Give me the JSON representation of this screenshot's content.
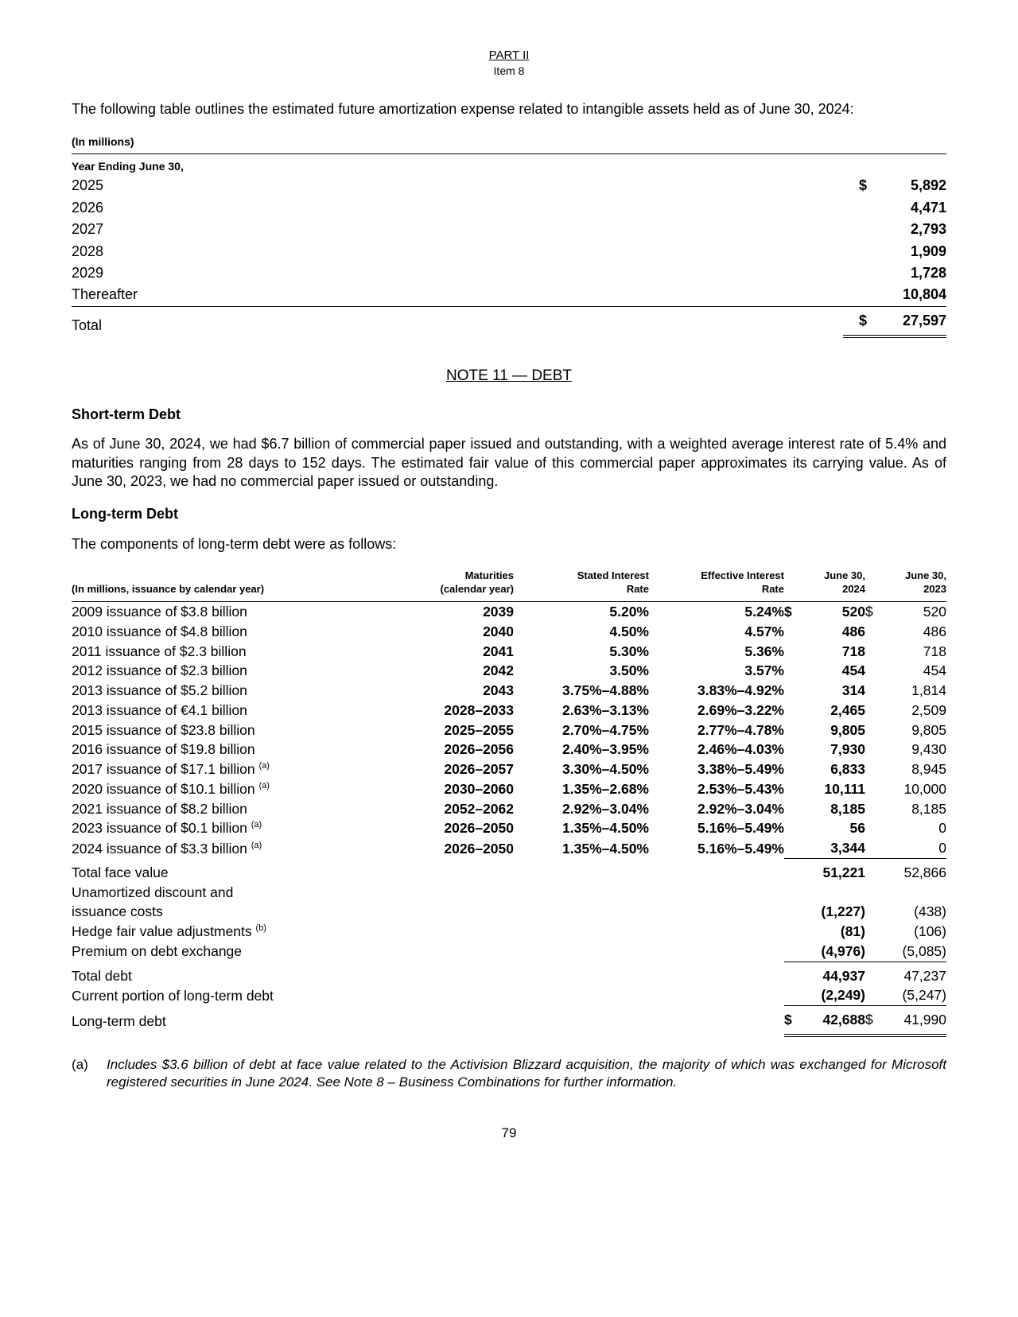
{
  "header": {
    "part": "PART II",
    "item": "Item 8"
  },
  "intro": "The following table outlines the estimated future amortization expense related to intangible assets held as of June 30, 2024:",
  "amortization": {
    "units": "(In millions)",
    "year_header": "Year Ending June 30,",
    "rows": [
      {
        "year": "2025",
        "amount": "5,892"
      },
      {
        "year": "2026",
        "amount": "4,471"
      },
      {
        "year": "2027",
        "amount": "2,793"
      },
      {
        "year": "2028",
        "amount": "1,909"
      },
      {
        "year": "2029",
        "amount": "1,728"
      },
      {
        "year": "Thereafter",
        "amount": "10,804"
      }
    ],
    "total_label": "Total",
    "total_amount": "27,597"
  },
  "note_title": "NOTE 11 — DEBT",
  "short_term": {
    "heading": "Short-term Debt",
    "body": "As of June 30, 2024, we had $6.7 billion of commercial paper issued and outstanding, with a weighted average interest rate of 5.4% and maturities ranging from 28 days to 152 days. The estimated fair value of this commercial paper approximates its carrying value. As of June 30, 2023, we had no commercial paper issued or outstanding."
  },
  "long_term": {
    "heading": "Long-term Debt",
    "intro": "The components of long-term debt were as follows:",
    "columns": {
      "issuance": "(In millions, issuance by calendar year)",
      "maturities_l1": "Maturities",
      "maturities_l2": "(calendar year)",
      "stated_l1": "Stated Interest",
      "stated_l2": "Rate",
      "effective_l1": "Effective Interest",
      "effective_l2": "Rate",
      "j2024_l1": "June 30,",
      "j2024_l2": "2024",
      "j2023_l1": "June 30,",
      "j2023_l2": "2023"
    },
    "rows": [
      {
        "iss": "2009 issuance of $3.8 billion",
        "mat": "2039",
        "stated": "5.20%",
        "eff": "5.24%",
        "d1": "$",
        "v24": "520",
        "d2": "$",
        "v23": "520"
      },
      {
        "iss": "2010 issuance of $4.8 billion",
        "mat": "2040",
        "stated": "4.50%",
        "eff": "4.57%",
        "d1": "",
        "v24": "486",
        "d2": "",
        "v23": "486"
      },
      {
        "iss": "2011 issuance of $2.3 billion",
        "mat": "2041",
        "stated": "5.30%",
        "eff": "5.36%",
        "d1": "",
        "v24": "718",
        "d2": "",
        "v23": "718"
      },
      {
        "iss": "2012 issuance of $2.3 billion",
        "mat": "2042",
        "stated": "3.50%",
        "eff": "3.57%",
        "d1": "",
        "v24": "454",
        "d2": "",
        "v23": "454"
      },
      {
        "iss": "2013 issuance of $5.2 billion",
        "mat": "2043",
        "stated": "3.75%–4.88%",
        "eff": "3.83%–4.92%",
        "d1": "",
        "v24": "314",
        "d2": "",
        "v23": "1,814"
      },
      {
        "iss": "2013 issuance of €4.1 billion",
        "mat": "2028–2033",
        "stated": "2.63%–3.13%",
        "eff": "2.69%–3.22%",
        "d1": "",
        "v24": "2,465",
        "d2": "",
        "v23": "2,509"
      },
      {
        "iss": "2015 issuance of $23.8 billion",
        "mat": "2025–2055",
        "stated": "2.70%–4.75%",
        "eff": "2.77%–4.78%",
        "d1": "",
        "v24": "9,805",
        "d2": "",
        "v23": "9,805"
      },
      {
        "iss": "2016 issuance of $19.8 billion",
        "mat": "2026–2056",
        "stated": "2.40%–3.95%",
        "eff": "2.46%–4.03%",
        "d1": "",
        "v24": "7,930",
        "d2": "",
        "v23": "9,430"
      },
      {
        "iss": "2017 issuance of $17.1 billion",
        "note": "(a)",
        "mat": "2026–2057",
        "stated": "3.30%–4.50%",
        "eff": "3.38%–5.49%",
        "d1": "",
        "v24": "6,833",
        "d2": "",
        "v23": "8,945"
      },
      {
        "iss": "2020 issuance of $10.1 billion",
        "note": "(a)",
        "mat": "2030–2060",
        "stated": "1.35%–2.68%",
        "eff": "2.53%–5.43%",
        "d1": "",
        "v24": "10,111",
        "d2": "",
        "v23": "10,000"
      },
      {
        "iss": "2021 issuance of $8.2 billion",
        "mat": "2052–2062",
        "stated": "2.92%–3.04%",
        "eff": "2.92%–3.04%",
        "d1": "",
        "v24": "8,185",
        "d2": "",
        "v23": "8,185"
      },
      {
        "iss": "2023 issuance of $0.1 billion",
        "note": "(a)",
        "mat": "2026–2050",
        "stated": "1.35%–4.50%",
        "eff": "5.16%–5.49%",
        "d1": "",
        "v24": "56",
        "d2": "",
        "v23": "0"
      },
      {
        "iss": "2024 issuance of $3.3 billion",
        "note": "(a)",
        "mat": "2026–2050",
        "stated": "1.35%–4.50%",
        "eff": "5.16%–5.49%",
        "d1": "",
        "v24": "3,344",
        "d2": "",
        "v23": "0"
      }
    ],
    "subtotals": {
      "face_label": "Total face value",
      "face_24": "51,221",
      "face_23": "52,866",
      "unamort_l1": "Unamortized discount and",
      "unamort_l2": "issuance costs",
      "unamort_24": "(1,227)",
      "unamort_23": "(438)",
      "hedge_label": "Hedge fair value adjustments",
      "hedge_note": "(b)",
      "hedge_24": "(81)",
      "hedge_23": "(106)",
      "premium_label": "Premium on debt exchange",
      "premium_24": "(4,976)",
      "premium_23": "(5,085)",
      "total_debt_label": "Total debt",
      "total_debt_24": "44,937",
      "total_debt_23": "47,237",
      "current_label": "Current portion of long-term debt",
      "current_24": "(2,249)",
      "current_23": "(5,247)",
      "lt_label": "Long-term debt",
      "lt_24": "42,688",
      "lt_23": "41,990"
    }
  },
  "footnote_a": {
    "key": "(a)",
    "text": "Includes $3.6 billion of debt at face value related to the Activision Blizzard acquisition, the majority of which was exchanged for Microsoft registered securities in June 2024. See Note 8 – Business Combinations for further information."
  },
  "page_number": "79"
}
